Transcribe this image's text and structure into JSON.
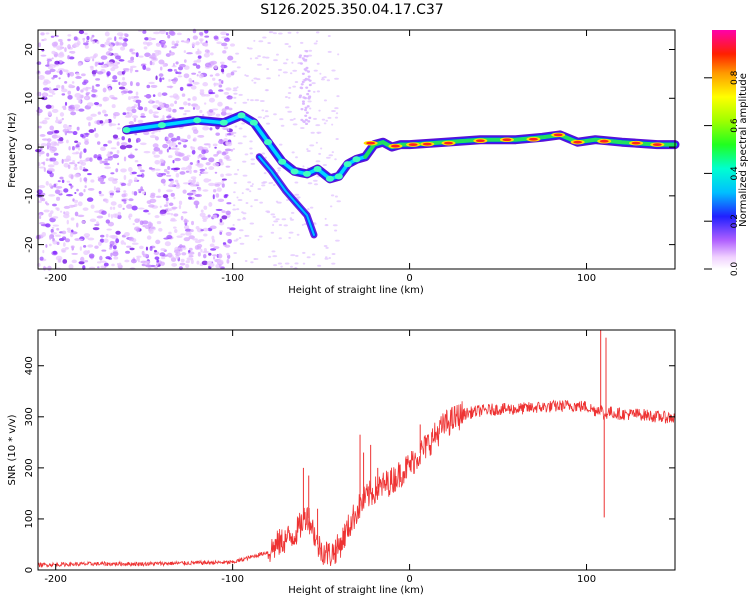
{
  "title": "S126.2025.350.04.17.C37",
  "chart_data": [
    {
      "type": "heatmap",
      "name": "spectrogram",
      "xlabel": "Height of straight line (km)",
      "ylabel": "Frequency (Hz)",
      "xlim": [
        -210,
        150
      ],
      "ylim": [
        -25,
        24
      ],
      "xticks": [
        -200,
        -100,
        0,
        100
      ],
      "yticks": [
        -20,
        -10,
        0,
        10,
        20
      ],
      "colorbar": {
        "label": "Normalized spectral amplitude",
        "range": [
          0.0,
          1.0
        ],
        "ticks": [
          0.0,
          0.2,
          0.4,
          0.6,
          0.8
        ]
      },
      "ridge": {
        "x": [
          -160,
          -140,
          -120,
          -105,
          -95,
          -88,
          -80,
          -72,
          -65,
          -58,
          -52,
          -45,
          -40,
          -35,
          -30,
          -25,
          -20,
          -15,
          -10,
          -5,
          0,
          20,
          40,
          60,
          75,
          85,
          95,
          105,
          120,
          140,
          150
        ],
        "y": [
          3.5,
          4.5,
          5.5,
          5.0,
          6.5,
          5.0,
          1.0,
          -3.0,
          -5.0,
          -5.5,
          -4.5,
          -6.5,
          -6.0,
          -3.5,
          -2.5,
          -2.0,
          0.5,
          1.0,
          0.0,
          0.5,
          0.5,
          1.0,
          1.5,
          1.5,
          2.0,
          2.5,
          1.0,
          1.5,
          1.0,
          0.5,
          0.5
        ]
      },
      "secondary_branch": {
        "x": [
          -85,
          -78,
          -70,
          -64,
          -58,
          -54
        ],
        "y": [
          -2,
          -5,
          -9,
          -11.5,
          -14,
          -18
        ]
      }
    },
    {
      "type": "line",
      "name": "snr",
      "xlabel": "Height of straight line (km)",
      "ylabel": "SNR (10 * v/v)",
      "xlim": [
        -210,
        150
      ],
      "ylim": [
        0,
        470
      ],
      "xticks": [
        -200,
        -100,
        0,
        100
      ],
      "yticks": [
        0,
        100,
        200,
        300,
        400
      ],
      "color": "#ee3333",
      "series": {
        "x": [
          -210,
          -180,
          -150,
          -120,
          -100,
          -90,
          -80,
          -75,
          -70,
          -65,
          -62,
          -58,
          -55,
          -52,
          -50,
          -45,
          -40,
          -35,
          -30,
          -25,
          -20,
          -15,
          -10,
          -5,
          0,
          5,
          10,
          15,
          20,
          25,
          30,
          40,
          50,
          60,
          70,
          80,
          90,
          100,
          105,
          108,
          110,
          112,
          115,
          120,
          130,
          140,
          150
        ],
        "y": [
          10,
          12,
          12,
          14,
          15,
          25,
          35,
          50,
          60,
          70,
          85,
          110,
          85,
          50,
          40,
          30,
          45,
          80,
          115,
          140,
          155,
          165,
          175,
          190,
          205,
          225,
          245,
          265,
          285,
          295,
          305,
          312,
          315,
          315,
          318,
          320,
          322,
          320,
          312,
          318,
          300,
          310,
          308,
          305,
          305,
          300,
          298
        ]
      },
      "spikes": [
        {
          "x": -60,
          "y": 200
        },
        {
          "x": -57,
          "y": 185
        },
        {
          "x": -52,
          "y": 120
        },
        {
          "x": -28,
          "y": 265
        },
        {
          "x": -26,
          "y": 230
        },
        {
          "x": -22,
          "y": 245
        },
        {
          "x": -18,
          "y": 200
        },
        {
          "x": 6,
          "y": 285
        },
        {
          "x": 108,
          "y": 470
        },
        {
          "x": 110,
          "y": 103
        },
        {
          "x": 111,
          "y": 455
        }
      ]
    }
  ]
}
